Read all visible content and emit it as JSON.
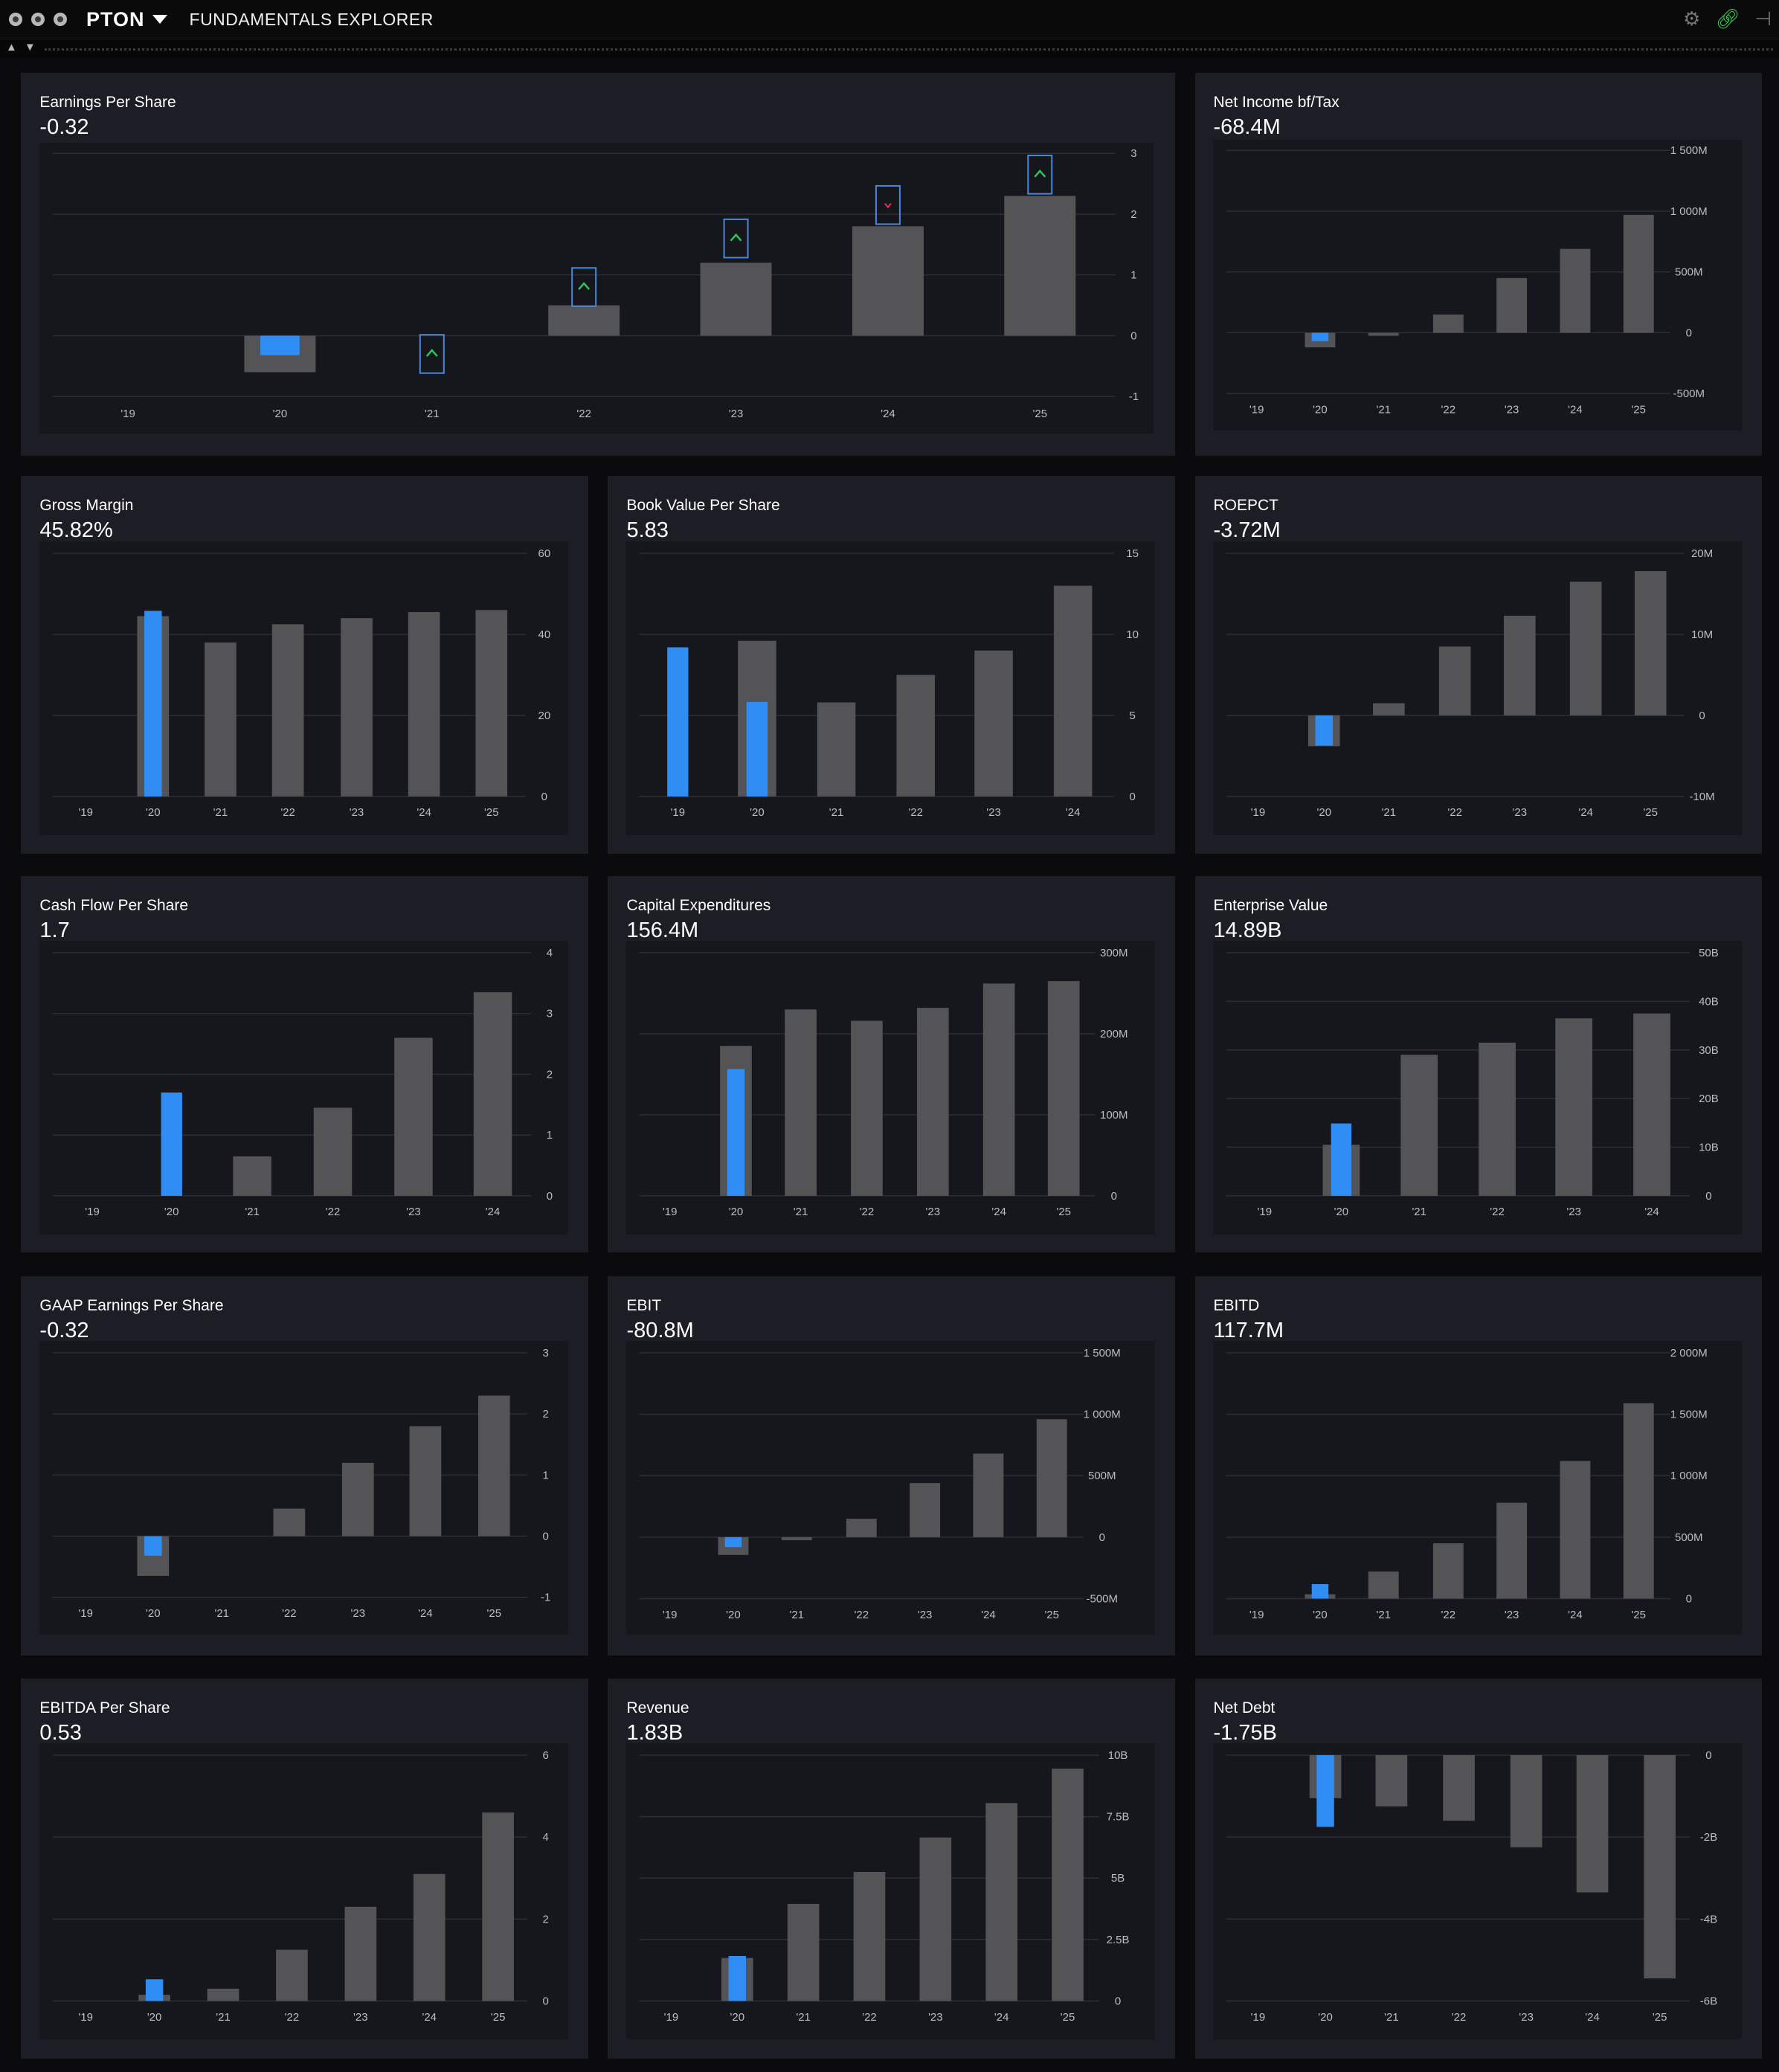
{
  "window": {
    "ticker": "PTON",
    "title": "FUNDAMENTALS EXPLORER",
    "controls": [
      "close-icon",
      "minimize-icon",
      "maximize-icon"
    ],
    "right_icons": [
      "settings-icon",
      "link-icon",
      "pin-icon"
    ],
    "accent": "#2f8df4",
    "link_color": "#39d05a"
  },
  "panels": [
    {
      "id": "eps",
      "title": "Earnings Per Share",
      "value": "-0.32",
      "chart_data": {
        "type": "bar",
        "categories": [
          "'19",
          "'20",
          "'21",
          "'22",
          "'23",
          "'24",
          "'25"
        ],
        "series": [
          {
            "values": [
              null,
              -0.6,
              null,
              0.5,
              1.2,
              1.8,
              2.3
            ]
          },
          {
            "values": [
              null,
              -0.32,
              null,
              null,
              null,
              null,
              null
            ]
          }
        ],
        "estimates": [
          {
            "category": "'21",
            "value": -0.3,
            "direction": "up"
          },
          {
            "category": "'22",
            "value": 0.8,
            "direction": "up"
          },
          {
            "category": "'23",
            "value": 1.6,
            "direction": "up"
          },
          {
            "category": "'24",
            "value": 2.15,
            "direction": "down"
          },
          {
            "category": "'25",
            "value": 2.65,
            "direction": "up"
          }
        ],
        "ylim": [
          -1,
          3
        ],
        "yticks": [
          "3",
          "2",
          "1",
          "0",
          "-1"
        ],
        "ytick_values": [
          3,
          2,
          1,
          0,
          -1
        ]
      }
    },
    {
      "id": "net-income",
      "title": "Net Income bf/Tax",
      "value": "-68.4M",
      "chart_data": {
        "type": "bar",
        "categories": [
          "'19",
          "'20",
          "'21",
          "'22",
          "'23",
          "'24",
          "'25"
        ],
        "series": [
          {
            "values": [
              null,
              -120,
              -25,
              150,
              450,
              690,
              970
            ]
          },
          {
            "values": [
              null,
              -68.4,
              null,
              null,
              null,
              null,
              null
            ]
          }
        ],
        "ylim": [
          -500,
          1500
        ],
        "yticks": [
          "1 500M",
          "1 000M",
          "500M",
          "0",
          "-500M"
        ],
        "ytick_values": [
          1500,
          1000,
          500,
          0,
          -500
        ]
      }
    },
    {
      "id": "gross-margin",
      "title": "Gross Margin",
      "value": "45.82%",
      "chart_data": {
        "type": "bar",
        "categories": [
          "'19",
          "'20",
          "'21",
          "'22",
          "'23",
          "'24",
          "'25"
        ],
        "series": [
          {
            "values": [
              null,
              44.5,
              38,
              42.5,
              44,
              45.5,
              46
            ]
          },
          {
            "values": [
              null,
              45.82,
              null,
              null,
              null,
              null,
              null
            ]
          }
        ],
        "ylim": [
          0,
          60
        ],
        "yticks": [
          "60",
          "40",
          "20",
          "0"
        ],
        "ytick_values": [
          60,
          40,
          20,
          0
        ]
      }
    },
    {
      "id": "bvps",
      "title": "Book Value Per Share",
      "value": "5.83",
      "chart_data": {
        "type": "bar",
        "categories": [
          "'19",
          "'20",
          "'21",
          "'22",
          "'23",
          "'24"
        ],
        "series": [
          {
            "values": [
              null,
              9.6,
              5.8,
              7.5,
              9,
              13
            ]
          },
          {
            "values": [
              9.2,
              5.83,
              null,
              null,
              null,
              null
            ]
          }
        ],
        "ylim": [
          0,
          15
        ],
        "yticks": [
          "15",
          "10",
          "5",
          "0"
        ],
        "ytick_values": [
          15,
          10,
          5,
          0
        ]
      }
    },
    {
      "id": "roepct",
      "title": "ROEPCT",
      "value": "-3.72M",
      "chart_data": {
        "type": "bar",
        "categories": [
          "'19",
          "'20",
          "'21",
          "'22",
          "'23",
          "'24",
          "'25"
        ],
        "series": [
          {
            "values": [
              null,
              -3.8,
              1.5,
              8.5,
              12.3,
              16.5,
              17.8
            ]
          },
          {
            "values": [
              null,
              -3.72,
              null,
              null,
              null,
              null,
              null
            ]
          }
        ],
        "ylim": [
          -10,
          20
        ],
        "yticks": [
          "20M",
          "10M",
          "0",
          "-10M"
        ],
        "ytick_values": [
          20,
          10,
          0,
          -10
        ]
      }
    },
    {
      "id": "cfps",
      "title": "Cash Flow Per Share",
      "value": "1.7",
      "chart_data": {
        "type": "bar",
        "categories": [
          "'19",
          "'20",
          "'21",
          "'22",
          "'23",
          "'24"
        ],
        "series": [
          {
            "values": [
              null,
              null,
              0.65,
              1.45,
              2.6,
              3.35
            ]
          },
          {
            "values": [
              null,
              1.7,
              null,
              null,
              null,
              null
            ]
          }
        ],
        "ylim": [
          0,
          4
        ],
        "yticks": [
          "4",
          "3",
          "2",
          "1",
          "0"
        ],
        "ytick_values": [
          4,
          3,
          2,
          1,
          0
        ]
      }
    },
    {
      "id": "capex",
      "title": "Capital Expenditures",
      "value": "156.4M",
      "chart_data": {
        "type": "bar",
        "categories": [
          "'19",
          "'20",
          "'21",
          "'22",
          "'23",
          "'24",
          "'25"
        ],
        "series": [
          {
            "values": [
              null,
              185,
              230,
              216,
              232,
              262,
              265
            ]
          },
          {
            "values": [
              null,
              156.4,
              null,
              null,
              null,
              null,
              null
            ]
          }
        ],
        "ylim": [
          0,
          300
        ],
        "yticks": [
          "300M",
          "200M",
          "100M",
          "0"
        ],
        "ytick_values": [
          300,
          200,
          100,
          0
        ]
      }
    },
    {
      "id": "ev",
      "title": "Enterprise Value",
      "value": "14.89B",
      "chart_data": {
        "type": "bar",
        "categories": [
          "'19",
          "'20",
          "'21",
          "'22",
          "'23",
          "'24"
        ],
        "series": [
          {
            "values": [
              null,
              10.5,
              29,
              31.5,
              36.5,
              37.5
            ]
          },
          {
            "values": [
              null,
              14.89,
              null,
              null,
              null,
              null
            ]
          }
        ],
        "ylim": [
          0,
          50
        ],
        "yticks": [
          "50B",
          "40B",
          "30B",
          "20B",
          "10B",
          "0"
        ],
        "ytick_values": [
          50,
          40,
          30,
          20,
          10,
          0
        ]
      }
    },
    {
      "id": "gaap-eps",
      "title": "GAAP Earnings Per Share",
      "value": "-0.32",
      "chart_data": {
        "type": "bar",
        "categories": [
          "'19",
          "'20",
          "'21",
          "'22",
          "'23",
          "'24",
          "'25"
        ],
        "series": [
          {
            "values": [
              null,
              -0.65,
              null,
              0.45,
              1.2,
              1.8,
              2.3
            ]
          },
          {
            "values": [
              null,
              -0.32,
              null,
              null,
              null,
              null,
              null
            ]
          }
        ],
        "ylim": [
          -1,
          3
        ],
        "yticks": [
          "3",
          "2",
          "1",
          "0",
          "-1"
        ],
        "ytick_values": [
          3,
          2,
          1,
          0,
          -1
        ]
      }
    },
    {
      "id": "ebit",
      "title": "EBIT",
      "value": "-80.8M",
      "chart_data": {
        "type": "bar",
        "categories": [
          "'19",
          "'20",
          "'21",
          "'22",
          "'23",
          "'24",
          "'25"
        ],
        "series": [
          {
            "values": [
              null,
              -145,
              -25,
              150,
              440,
              680,
              960
            ]
          },
          {
            "values": [
              null,
              -80.8,
              null,
              null,
              null,
              null,
              null
            ]
          }
        ],
        "ylim": [
          -500,
          1500
        ],
        "yticks": [
          "1 500M",
          "1 000M",
          "500M",
          "0",
          "-500M"
        ],
        "ytick_values": [
          1500,
          1000,
          500,
          0,
          -500
        ]
      }
    },
    {
      "id": "ebitd",
      "title": "EBITD",
      "value": "117.7M",
      "chart_data": {
        "type": "bar",
        "categories": [
          "'19",
          "'20",
          "'21",
          "'22",
          "'23",
          "'24",
          "'25"
        ],
        "series": [
          {
            "values": [
              null,
              35,
              220,
              450,
              780,
              1120,
              1590
            ]
          },
          {
            "values": [
              null,
              117.7,
              null,
              null,
              null,
              null,
              null
            ]
          }
        ],
        "ylim": [
          0,
          2000
        ],
        "yticks": [
          "2 000M",
          "1 500M",
          "1 000M",
          "500M",
          "0"
        ],
        "ytick_values": [
          2000,
          1500,
          1000,
          500,
          0
        ]
      }
    },
    {
      "id": "ebitda-ps",
      "title": "EBITDA Per Share",
      "value": "0.53",
      "chart_data": {
        "type": "bar",
        "categories": [
          "'19",
          "'20",
          "'21",
          "'22",
          "'23",
          "'24",
          "'25"
        ],
        "series": [
          {
            "values": [
              null,
              0.15,
              0.3,
              1.25,
              2.3,
              3.1,
              4.6
            ]
          },
          {
            "values": [
              null,
              0.53,
              null,
              null,
              null,
              null,
              null
            ]
          }
        ],
        "ylim": [
          0,
          6
        ],
        "yticks": [
          "6",
          "4",
          "2",
          "0"
        ],
        "ytick_values": [
          6,
          4,
          2,
          0
        ]
      }
    },
    {
      "id": "revenue",
      "title": "Revenue",
      "value": "1.83B",
      "chart_data": {
        "type": "bar",
        "categories": [
          "'19",
          "'20",
          "'21",
          "'22",
          "'23",
          "'24",
          "'25"
        ],
        "series": [
          {
            "values": [
              null,
              1.75,
              3.95,
              5.25,
              6.65,
              8.05,
              9.45
            ]
          },
          {
            "values": [
              null,
              1.83,
              null,
              null,
              null,
              null,
              null
            ]
          }
        ],
        "ylim": [
          0,
          10
        ],
        "yticks": [
          "10B",
          "7.5B",
          "5B",
          "2.5B",
          "0"
        ],
        "ytick_values": [
          10,
          7.5,
          5,
          2.5,
          0
        ]
      }
    },
    {
      "id": "net-debt",
      "title": "Net Debt",
      "value": "-1.75B",
      "chart_data": {
        "type": "bar",
        "categories": [
          "'19",
          "'20",
          "'21",
          "'22",
          "'23",
          "'24",
          "'25"
        ],
        "series": [
          {
            "values": [
              null,
              -1.05,
              -1.25,
              -1.6,
              -2.25,
              -3.35,
              -5.45
            ]
          },
          {
            "values": [
              null,
              -1.75,
              null,
              null,
              null,
              null,
              null
            ]
          }
        ],
        "ylim": [
          -6,
          0
        ],
        "yticks": [
          "0",
          "-2B",
          "-4B",
          "-6B"
        ],
        "ytick_values": [
          0,
          -2,
          -4,
          -6
        ]
      }
    }
  ]
}
